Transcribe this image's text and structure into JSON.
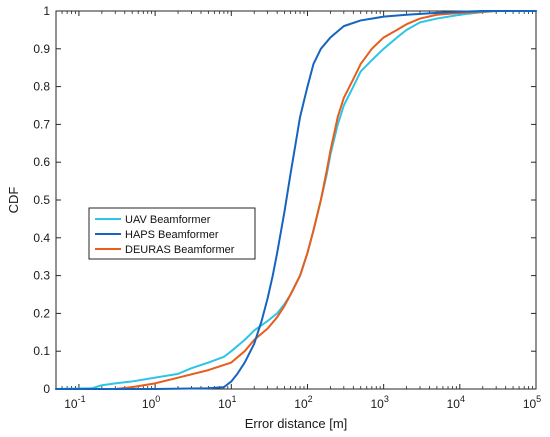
{
  "chart_data": {
    "type": "line",
    "xlabel": "Error distance [m]",
    "ylabel": "CDF",
    "x_scale": "log",
    "xlim": [
      0.05,
      100000
    ],
    "ylim": [
      0,
      1
    ],
    "grid": false,
    "legend_position": "center-left",
    "x_ticks": [
      {
        "value": 0.1,
        "base": "10",
        "exp": "-1"
      },
      {
        "value": 1,
        "base": "10",
        "exp": "0"
      },
      {
        "value": 10,
        "base": "10",
        "exp": "1"
      },
      {
        "value": 100,
        "base": "10",
        "exp": "2"
      },
      {
        "value": 1000,
        "base": "10",
        "exp": "3"
      },
      {
        "value": 10000,
        "base": "10",
        "exp": "4"
      },
      {
        "value": 100000,
        "base": "10",
        "exp": "5"
      }
    ],
    "y_ticks": [
      {
        "value": 0,
        "label": "0"
      },
      {
        "value": 0.1,
        "label": "0.1"
      },
      {
        "value": 0.2,
        "label": "0.2"
      },
      {
        "value": 0.3,
        "label": "0.3"
      },
      {
        "value": 0.4,
        "label": "0.4"
      },
      {
        "value": 0.5,
        "label": "0.5"
      },
      {
        "value": 0.6,
        "label": "0.6"
      },
      {
        "value": 0.7,
        "label": "0.7"
      },
      {
        "value": 0.8,
        "label": "0.8"
      },
      {
        "value": 0.9,
        "label": "0.9"
      },
      {
        "value": 1,
        "label": "1"
      }
    ],
    "series": [
      {
        "name": "UAV Beamformer",
        "color": "#2ec4e6",
        "points": [
          [
            0.05,
            0
          ],
          [
            0.15,
            0.002
          ],
          [
            0.2,
            0.01
          ],
          [
            0.3,
            0.015
          ],
          [
            0.5,
            0.02
          ],
          [
            1,
            0.03
          ],
          [
            2,
            0.04
          ],
          [
            3,
            0.055
          ],
          [
            5,
            0.07
          ],
          [
            8,
            0.085
          ],
          [
            10,
            0.1
          ],
          [
            15,
            0.13
          ],
          [
            20,
            0.155
          ],
          [
            30,
            0.18
          ],
          [
            40,
            0.2
          ],
          [
            50,
            0.225
          ],
          [
            60,
            0.25
          ],
          [
            80,
            0.3
          ],
          [
            100,
            0.36
          ],
          [
            120,
            0.42
          ],
          [
            150,
            0.5
          ],
          [
            180,
            0.57
          ],
          [
            200,
            0.62
          ],
          [
            250,
            0.7
          ],
          [
            300,
            0.75
          ],
          [
            400,
            0.8
          ],
          [
            500,
            0.84
          ],
          [
            700,
            0.87
          ],
          [
            1000,
            0.9
          ],
          [
            1500,
            0.93
          ],
          [
            2000,
            0.95
          ],
          [
            3000,
            0.97
          ],
          [
            5000,
            0.98
          ],
          [
            10000,
            0.99
          ],
          [
            20000,
            0.997
          ],
          [
            30000,
            1
          ],
          [
            100000,
            1
          ]
        ]
      },
      {
        "name": "HAPS Beamformer",
        "color": "#1565c0",
        "points": [
          [
            0.05,
            0
          ],
          [
            1,
            0
          ],
          [
            5,
            0.002
          ],
          [
            8,
            0.005
          ],
          [
            10,
            0.02
          ],
          [
            12,
            0.04
          ],
          [
            15,
            0.07
          ],
          [
            20,
            0.12
          ],
          [
            25,
            0.18
          ],
          [
            30,
            0.24
          ],
          [
            35,
            0.3
          ],
          [
            40,
            0.36
          ],
          [
            50,
            0.47
          ],
          [
            60,
            0.57
          ],
          [
            70,
            0.65
          ],
          [
            80,
            0.72
          ],
          [
            100,
            0.8
          ],
          [
            120,
            0.86
          ],
          [
            150,
            0.9
          ],
          [
            200,
            0.93
          ],
          [
            300,
            0.96
          ],
          [
            500,
            0.975
          ],
          [
            1000,
            0.985
          ],
          [
            2000,
            0.99
          ],
          [
            5000,
            0.995
          ],
          [
            10000,
            0.998
          ],
          [
            20000,
            1
          ],
          [
            100000,
            1
          ]
        ]
      },
      {
        "name": "DEURAS Beamformer",
        "color": "#e85c1c",
        "points": [
          [
            0.05,
            0
          ],
          [
            0.3,
            0
          ],
          [
            0.5,
            0.005
          ],
          [
            1,
            0.015
          ],
          [
            2,
            0.03
          ],
          [
            5,
            0.05
          ],
          [
            10,
            0.07
          ],
          [
            15,
            0.1
          ],
          [
            20,
            0.13
          ],
          [
            30,
            0.16
          ],
          [
            40,
            0.19
          ],
          [
            50,
            0.22
          ],
          [
            60,
            0.25
          ],
          [
            80,
            0.3
          ],
          [
            100,
            0.36
          ],
          [
            120,
            0.42
          ],
          [
            150,
            0.5
          ],
          [
            180,
            0.58
          ],
          [
            200,
            0.63
          ],
          [
            250,
            0.72
          ],
          [
            300,
            0.77
          ],
          [
            400,
            0.82
          ],
          [
            500,
            0.86
          ],
          [
            700,
            0.9
          ],
          [
            1000,
            0.93
          ],
          [
            1500,
            0.95
          ],
          [
            2000,
            0.965
          ],
          [
            3000,
            0.98
          ],
          [
            5000,
            0.99
          ],
          [
            10000,
            0.995
          ],
          [
            30000,
            1
          ],
          [
            100000,
            1
          ]
        ]
      }
    ]
  }
}
